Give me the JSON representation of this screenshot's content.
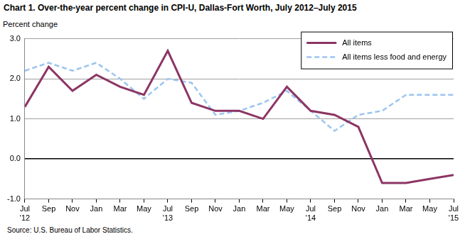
{
  "chart_data": {
    "type": "line",
    "title": "Chart 1. Over-the-year percent change in CPI-U, Dallas-Fort Worth, July 2012–July 2015",
    "y_label": "Percent change",
    "source": "Source: U.S. Bureau of Labor Statistics.",
    "categories": [
      "Jul '12",
      "Sep",
      "Nov",
      "Jan",
      "Mar",
      "May",
      "Jul '13",
      "Sep",
      "Nov",
      "Jan",
      "Mar",
      "May",
      "Jul '14",
      "Sep",
      "Nov",
      "Jan",
      "Mar",
      "May",
      "Jul '15"
    ],
    "series": [
      {
        "name": "All items",
        "color": "#8c3564",
        "line_style": "solid",
        "values": [
          1.3,
          2.3,
          1.7,
          2.1,
          1.8,
          1.6,
          2.7,
          1.4,
          1.2,
          1.2,
          1.0,
          1.8,
          1.2,
          1.1,
          0.8,
          -0.6,
          -0.6,
          -0.5,
          -0.4
        ]
      },
      {
        "name": "All items less food and energy",
        "color": "#9cc5f0",
        "line_style": "dashed",
        "values": [
          2.2,
          2.4,
          2.2,
          2.4,
          2.0,
          1.5,
          2.0,
          1.9,
          1.1,
          1.2,
          1.4,
          1.7,
          1.2,
          0.7,
          1.1,
          1.2,
          1.6,
          1.6,
          1.6
        ]
      }
    ],
    "ylim": [
      -1,
      3
    ],
    "yticks": [
      {
        "value": -1,
        "label": "-1.0"
      },
      {
        "value": 0,
        "label": "0.0"
      },
      {
        "value": 1,
        "label": "1.0"
      },
      {
        "value": 2,
        "label": "2.0"
      },
      {
        "value": 3,
        "label": "3.0"
      }
    ],
    "grid": true,
    "legend": "top-right"
  }
}
